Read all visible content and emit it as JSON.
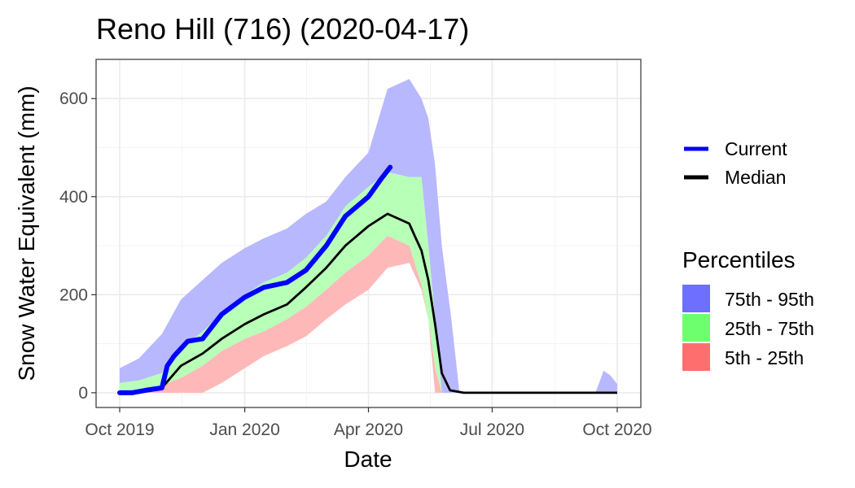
{
  "chart_data": {
    "type": "area",
    "title": "Reno Hill (716) (2020-04-17)",
    "xlabel": "Date",
    "ylabel": "Snow Water Equivalent (mm)",
    "xlim": [
      "2019-10-01",
      "2020-10-01"
    ],
    "ylim": [
      -30,
      680
    ],
    "x_ticks": [
      "2019-10-01",
      "2020-01-01",
      "2020-04-01",
      "2020-07-01",
      "2020-10-01"
    ],
    "x_tick_labels": [
      "Oct 2019",
      "Jan 2020",
      "Apr 2020",
      "Jul 2020",
      "Oct 2020"
    ],
    "y_ticks": [
      0,
      200,
      400,
      600
    ],
    "grid": true,
    "legend_position": "right",
    "colors": {
      "current": "#0000ff",
      "median": "#000000",
      "p75_95": "#b8b8ff",
      "p25_75": "#b8ffb8",
      "p5_25": "#ffb8b8",
      "key_p75_95": "#6e6eff",
      "key_p25_75": "#6eff6e",
      "key_p5_25": "#ff6e6e"
    },
    "band_dates": [
      "2019-10-01",
      "2019-10-15",
      "2019-11-01",
      "2019-11-15",
      "2019-12-01",
      "2019-12-15",
      "2020-01-01",
      "2020-01-15",
      "2020-02-01",
      "2020-02-15",
      "2020-03-01",
      "2020-03-15",
      "2020-04-01",
      "2020-04-15",
      "2020-05-01",
      "2020-05-10",
      "2020-05-15",
      "2020-05-20",
      "2020-05-25",
      "2020-06-01",
      "2020-06-07",
      "2020-06-15",
      "2020-06-25",
      "2020-07-01",
      "2020-08-01",
      "2020-09-01",
      "2020-09-15",
      "2020-09-21",
      "2020-09-26",
      "2020-10-01"
    ],
    "p95": [
      50,
      70,
      120,
      190,
      230,
      265,
      295,
      315,
      335,
      365,
      390,
      440,
      490,
      620,
      640,
      600,
      560,
      465,
      300,
      150,
      0,
      0,
      0,
      0,
      0,
      0,
      0,
      45,
      35,
      18
    ],
    "p75": [
      20,
      25,
      40,
      90,
      125,
      160,
      200,
      225,
      245,
      275,
      320,
      380,
      420,
      450,
      440,
      440,
      300,
      150,
      0,
      0,
      0,
      0,
      0,
      0,
      0,
      0,
      0,
      0,
      0,
      0
    ],
    "p25": [
      0,
      0,
      15,
      30,
      55,
      85,
      110,
      125,
      150,
      175,
      210,
      245,
      280,
      320,
      300,
      220,
      150,
      50,
      0,
      0,
      0,
      0,
      0,
      0,
      0,
      0,
      0,
      0,
      0,
      0
    ],
    "p5": [
      0,
      0,
      0,
      0,
      0,
      20,
      50,
      75,
      95,
      115,
      150,
      180,
      210,
      255,
      265,
      210,
      150,
      0,
      0,
      0,
      0,
      0,
      0,
      0,
      0,
      0,
      0,
      0,
      0,
      0
    ],
    "median_dates": [
      "2019-10-01",
      "2019-10-15",
      "2019-11-01",
      "2019-11-15",
      "2019-12-01",
      "2019-12-15",
      "2020-01-01",
      "2020-01-15",
      "2020-02-01",
      "2020-02-15",
      "2020-03-01",
      "2020-03-15",
      "2020-04-01",
      "2020-04-15",
      "2020-05-01",
      "2020-05-05",
      "2020-05-10",
      "2020-05-15",
      "2020-05-20",
      "2020-05-25",
      "2020-05-31",
      "2020-06-10",
      "2020-07-01",
      "2020-10-01"
    ],
    "median": [
      0,
      0,
      10,
      55,
      80,
      110,
      140,
      160,
      180,
      215,
      255,
      300,
      340,
      365,
      345,
      320,
      290,
      230,
      140,
      40,
      5,
      0,
      0,
      0
    ],
    "current_dates": [
      "2019-10-01",
      "2019-10-10",
      "2019-10-20",
      "2019-11-01",
      "2019-11-05",
      "2019-11-10",
      "2019-11-20",
      "2019-12-01",
      "2019-12-15",
      "2020-01-01",
      "2020-01-15",
      "2020-02-01",
      "2020-02-15",
      "2020-03-01",
      "2020-03-15",
      "2020-04-01",
      "2020-04-10",
      "2020-04-17"
    ],
    "current": [
      0,
      0,
      5,
      10,
      55,
      75,
      105,
      110,
      160,
      195,
      215,
      225,
      250,
      300,
      360,
      400,
      435,
      460
    ]
  },
  "legend": {
    "current_label": "Current",
    "median_label": "Median",
    "percentiles_title": "Percentiles",
    "items": [
      {
        "label": "75th - 95th"
      },
      {
        "label": "25th - 75th"
      },
      {
        "label": "5th - 25th"
      }
    ]
  }
}
